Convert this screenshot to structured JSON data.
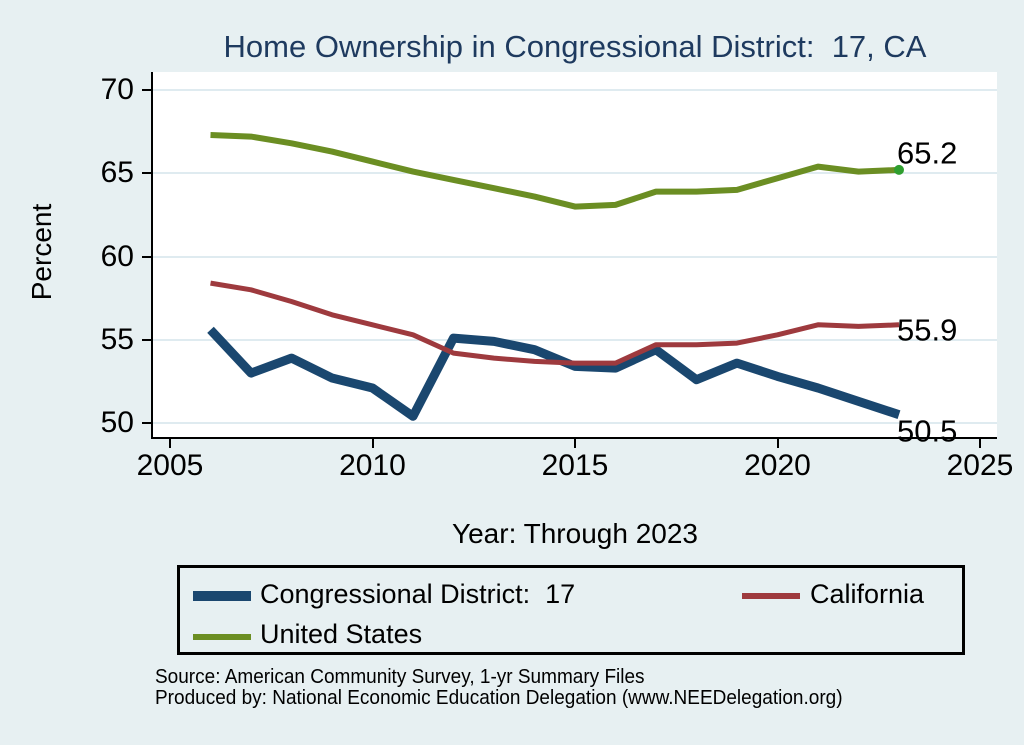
{
  "title": "Home Ownership in Congressional District:  17, CA",
  "y_axis": {
    "label": "Percent",
    "ticks": [
      50,
      55,
      60,
      65,
      70
    ]
  },
  "x_axis": {
    "label": "Year: Through 2023",
    "ticks": [
      2005,
      2010,
      2015,
      2020,
      2025
    ]
  },
  "legend": {
    "items": [
      {
        "label": "Congressional District:  17",
        "series": "cd17"
      },
      {
        "label": "California",
        "series": "ca"
      },
      {
        "label": "United States",
        "series": "us"
      }
    ]
  },
  "footer": {
    "source": "Source: American Community Survey, 1-yr Summary Files",
    "produced_by": "Produced by: National Economic Education Delegation (www.NEEDelegation.org)"
  },
  "colors": {
    "cd17": "#1a476f",
    "ca": "#9e3a3e",
    "us": "#6b8e23",
    "us_end_dot": "#2f9e2f",
    "title": "#1e3a5f",
    "background": "#e7f0f2",
    "plot_background": "#ffffff",
    "gridline": "#dfebf0",
    "axis": "#000000"
  },
  "chart_data": {
    "type": "line",
    "title": "Home Ownership in Congressional District:  17, CA",
    "xlabel": "Year: Through 2023",
    "ylabel": "Percent",
    "xlim": [
      2004.6,
      2025.4
    ],
    "ylim": [
      49.1,
      71.1
    ],
    "grid": "horizontal",
    "legend_position": "bottom-box",
    "x": [
      2006,
      2007,
      2008,
      2009,
      2010,
      2011,
      2012,
      2013,
      2014,
      2015,
      2016,
      2017,
      2018,
      2019,
      2020,
      2021,
      2022,
      2023
    ],
    "series": [
      {
        "name": "Congressional District:  17",
        "color": "#1a476f",
        "line_width": 9,
        "values": [
          55.6,
          53.0,
          53.9,
          52.7,
          52.1,
          50.4,
          55.1,
          54.9,
          54.4,
          53.4,
          53.3,
          54.4,
          52.6,
          53.6,
          52.8,
          52.1,
          51.3,
          50.5
        ],
        "end_label": "50.5"
      },
      {
        "name": "California",
        "color": "#9e3a3e",
        "line_width": 5,
        "values": [
          58.4,
          58.0,
          57.3,
          56.5,
          55.9,
          55.3,
          54.2,
          53.9,
          53.7,
          53.6,
          53.6,
          54.7,
          54.7,
          54.8,
          55.3,
          55.9,
          55.8,
          55.9
        ],
        "end_label": "55.9"
      },
      {
        "name": "United States",
        "color": "#6b8e23",
        "line_width": 6,
        "values": [
          67.3,
          67.2,
          66.8,
          66.3,
          65.7,
          65.1,
          64.6,
          64.1,
          63.6,
          63.0,
          63.1,
          63.9,
          63.9,
          64.0,
          64.7,
          65.4,
          65.1,
          65.2
        ],
        "end_label": "65.2",
        "end_marker_color": "#2f9e2f"
      }
    ]
  }
}
